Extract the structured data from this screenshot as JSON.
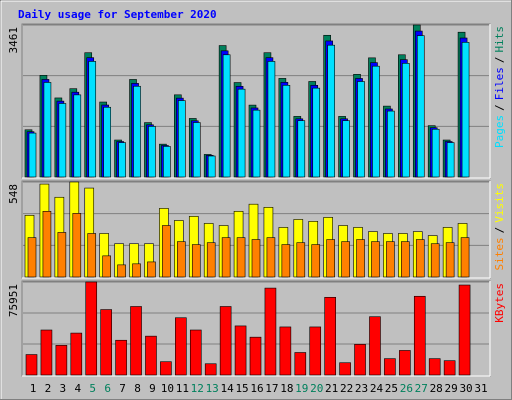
{
  "chart_data": {
    "type": "bar",
    "title": "Daily usage for September 2020",
    "separator": "/",
    "categories": [
      1,
      2,
      3,
      4,
      5,
      6,
      7,
      8,
      9,
      10,
      11,
      12,
      13,
      14,
      15,
      16,
      17,
      18,
      19,
      20,
      21,
      22,
      23,
      24,
      25,
      26,
      27,
      28,
      29,
      30,
      31
    ],
    "category_colors": [
      "#000000",
      "#000000",
      "#000000",
      "#000000",
      "#00805c",
      "#00805c",
      "#000000",
      "#000000",
      "#000000",
      "#000000",
      "#000000",
      "#00805c",
      "#00805c",
      "#000000",
      "#000000",
      "#000000",
      "#000000",
      "#000000",
      "#00805c",
      "#00805c",
      "#000000",
      "#000000",
      "#000000",
      "#000000",
      "#000000",
      "#00805c",
      "#00805c",
      "#000000",
      "#000000",
      "#000000",
      "#000000"
    ],
    "grid": true,
    "panels": [
      {
        "ylim": [
          0,
          3461
        ],
        "yticks": [
          3461
        ],
        "series": [
          {
            "name": "Hits",
            "color": "#00805c",
            "values": [
              1075,
              2315,
              1800,
              2011,
              2830,
              1707,
              842,
              2221,
              1239,
              748,
              1871,
              1333,
              514,
              2993,
              2151,
              1637,
              2830,
              2245,
              1380,
              2175,
              3227,
              1380,
              2338,
              2713,
              1614,
              2783,
              3461,
              1169,
              842,
              3297,
              null
            ]
          },
          {
            "name": "Files",
            "color": "#0000ff",
            "values": [
              1032,
              2222,
              1728,
              1931,
              2717,
              1639,
              808,
              2132,
              1189,
              718,
              1796,
              1280,
              493,
              2873,
              2065,
              1572,
              2717,
              2155,
              1325,
              2088,
              3098,
              1325,
              2244,
              2604,
              1549,
              2672,
              3323,
              1122,
              808,
              3165,
              null
            ]
          },
          {
            "name": "Pages",
            "color": "#00e0ff",
            "values": [
              1000,
              2153,
              1674,
              1870,
              2632,
              1588,
              783,
              2066,
              1152,
              696,
              1740,
              1240,
              478,
              2783,
              2000,
              1522,
              2632,
              2088,
              1283,
              2023,
              3001,
              1283,
              2174,
              2523,
              1501,
              2588,
              3219,
              1087,
              783,
              3066,
              null
            ]
          }
        ]
      },
      {
        "ylim": [
          0,
          548
        ],
        "yticks": [
          548
        ],
        "series": [
          {
            "name": "Visits",
            "color": "#ffff00",
            "values": [
              356,
              536,
              460,
              548,
              513,
              251,
              192,
              192,
              192,
              396,
              326,
              350,
              309,
              297,
              379,
              420,
              402,
              286,
              332,
              321,
              344,
              297,
              286,
              262,
              251,
              251,
              262,
              239,
              286,
              309,
              null
            ]
          },
          {
            "name": "Sites",
            "color": "#ff8000",
            "values": [
              227,
              379,
              257,
              367,
              251,
              122,
              70,
              76,
              87,
              297,
              204,
              187,
              198,
              227,
              227,
              216,
              227,
              187,
              198,
              187,
              216,
              204,
              216,
              204,
              204,
              204,
              216,
              192,
              198,
              227,
              null
            ]
          }
        ]
      },
      {
        "ylim": [
          0,
          75951
        ],
        "yticks": [
          75951
        ],
        "series": [
          {
            "name": "KBytes",
            "color": "#ff0000",
            "values": [
              16700,
              36740,
              24215,
              34235,
              75951,
              53440,
              28390,
              55945,
              31730,
              10855,
              46760,
              36740,
              9185,
              55945,
              40080,
              30895,
              70975,
              39245,
              18370,
              39245,
              63460,
              10020,
              25050,
              47595,
              13360,
              20040,
              64295,
              13360,
              11690,
              73480,
              null
            ]
          }
        ]
      }
    ]
  }
}
